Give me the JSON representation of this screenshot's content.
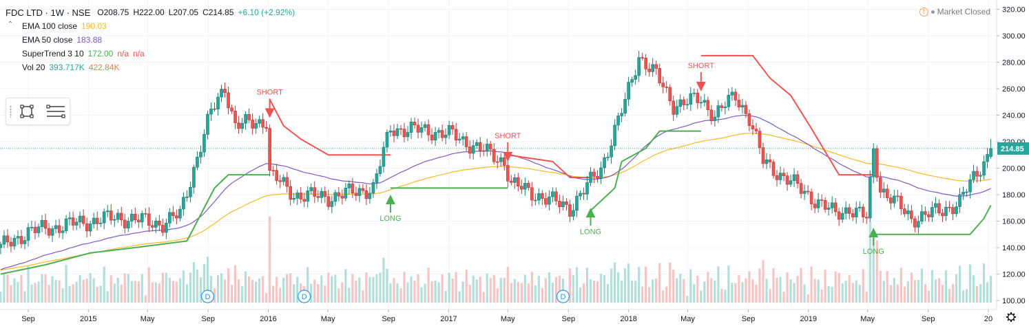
{
  "header": {
    "title": "FDC LTD · 1W · NSE",
    "open": "O208.75",
    "high": "H222.00",
    "low": "L207.05",
    "close": "C214.85",
    "change": "+6.10 (+2.92%)"
  },
  "studies": [
    {
      "name": "EMA 100 close",
      "values": [
        "190.03"
      ],
      "colors": [
        "#f7b924"
      ]
    },
    {
      "name": "EMA 50 close",
      "values": [
        "183.88"
      ],
      "colors": [
        "#7e57c2"
      ]
    },
    {
      "name": "SuperTrend 3 10",
      "values": [
        "172.00",
        "n/a",
        "n/a"
      ],
      "colors": [
        "#4caf50",
        "#ef5350",
        "#ef5350"
      ]
    },
    {
      "name": "Vol 20",
      "values": [
        "393.717K",
        "422.84K"
      ],
      "colors": [
        "#26a69a",
        "#f57c45"
      ]
    }
  ],
  "market_status": "Market Closed",
  "colors": {
    "up": "#26a69a",
    "down": "#ef5350",
    "ema100": "#f7b924",
    "ema50": "#7e57c2",
    "st_up": "#4caf50",
    "st_down": "#ef5350"
  },
  "icons": {
    "toolbox": [
      "drag-grip-icon",
      "rectangle-tool-icon",
      "lines-tool-icon"
    ],
    "settings": "gear-icon",
    "warning": "warning-icon"
  },
  "chart_data": {
    "type": "candlestick",
    "last_price_label": "214.85",
    "y_ticks": [
      100,
      120,
      140,
      160,
      180,
      200,
      220,
      240,
      260,
      280,
      300,
      320
    ],
    "y_tick_labels": [
      "100.00",
      "120.00",
      "140.00",
      "160.00",
      "180.00",
      "200.00",
      "220.00",
      "240.00",
      "260.00",
      "280.00",
      "300.00",
      "320.00"
    ],
    "x_tick_labels": [
      "Sep",
      "2015",
      "May",
      "Sep",
      "2016",
      "May",
      "Sep",
      "2017",
      "May",
      "Sep",
      "2018",
      "May",
      "Sep",
      "2019",
      "May",
      "Sep",
      "20"
    ],
    "x_tick_dates": [
      "2014-09-01",
      "2015-01-01",
      "2015-05-01",
      "2015-09-01",
      "2016-01-01",
      "2016-05-01",
      "2016-09-01",
      "2017-01-01",
      "2017-05-01",
      "2017-09-01",
      "2018-01-01",
      "2018-05-01",
      "2018-09-01",
      "2019-01-01",
      "2019-05-01",
      "2019-09-01",
      "2020-01-01"
    ],
    "price_anchors": [
      [
        "2014-07-07",
        140
      ],
      [
        "2014-09-01",
        152
      ],
      [
        "2014-12-01",
        158
      ],
      [
        "2015-03-02",
        163
      ],
      [
        "2015-06-01",
        158
      ],
      [
        "2015-07-06",
        165
      ],
      [
        "2015-08-03",
        200
      ],
      [
        "2015-09-07",
        242
      ],
      [
        "2015-10-05",
        262
      ],
      [
        "2015-10-26",
        232
      ],
      [
        "2015-12-28",
        236
      ],
      [
        "2016-01-04",
        196
      ],
      [
        "2016-02-22",
        180
      ],
      [
        "2016-05-02",
        178
      ],
      [
        "2016-08-01",
        185
      ],
      [
        "2016-09-05",
        230
      ],
      [
        "2016-11-28",
        228
      ],
      [
        "2017-01-09",
        225
      ],
      [
        "2017-04-24",
        205
      ],
      [
        "2017-05-08",
        188
      ],
      [
        "2017-07-31",
        175
      ],
      [
        "2017-09-04",
        170
      ],
      [
        "2017-10-02",
        183
      ],
      [
        "2017-11-06",
        200
      ],
      [
        "2017-12-25",
        250
      ],
      [
        "2018-01-22",
        285
      ],
      [
        "2018-02-26",
        270
      ],
      [
        "2018-04-02",
        248
      ],
      [
        "2018-05-28",
        252
      ],
      [
        "2018-06-25",
        240
      ],
      [
        "2018-08-06",
        255
      ],
      [
        "2018-09-03",
        238
      ],
      [
        "2018-10-01",
        205
      ],
      [
        "2018-12-31",
        180
      ],
      [
        "2019-02-25",
        165
      ],
      [
        "2019-03-25",
        170
      ],
      [
        "2019-04-29",
        162
      ],
      [
        "2019-05-13",
        214
      ],
      [
        "2019-05-27",
        185
      ],
      [
        "2019-07-29",
        162
      ],
      [
        "2019-09-30",
        168
      ],
      [
        "2019-11-04",
        175
      ],
      [
        "2019-12-23",
        205
      ],
      [
        "2020-01-06",
        214.85
      ]
    ],
    "last_candle": {
      "open": 208.75,
      "high": 222.0,
      "low": 207.05,
      "close": 214.85
    },
    "supertrend": [
      {
        "trend": "up",
        "points": [
          [
            "2014-07-07",
            120
          ],
          [
            "2014-10-06",
            127
          ],
          [
            "2015-01-05",
            136
          ],
          [
            "2015-04-06",
            140
          ],
          [
            "2015-07-20",
            145
          ],
          [
            "2015-08-17",
            165
          ],
          [
            "2015-09-14",
            185
          ],
          [
            "2015-10-12",
            195
          ],
          [
            "2016-01-04",
            195
          ]
        ]
      },
      {
        "trend": "down",
        "points": [
          [
            "2016-01-04",
            252
          ],
          [
            "2016-02-01",
            232
          ],
          [
            "2016-03-07",
            222
          ],
          [
            "2016-05-02",
            210
          ],
          [
            "2016-09-05",
            210
          ]
        ]
      },
      {
        "trend": "up",
        "points": [
          [
            "2016-09-05",
            185
          ],
          [
            "2017-05-01",
            185
          ]
        ]
      },
      {
        "trend": "down",
        "points": [
          [
            "2017-05-01",
            210
          ],
          [
            "2017-07-31",
            205
          ],
          [
            "2017-09-04",
            193
          ],
          [
            "2017-10-16",
            193
          ]
        ]
      },
      {
        "trend": "up",
        "points": [
          [
            "2017-10-16",
            168
          ],
          [
            "2017-12-04",
            185
          ],
          [
            "2017-12-18",
            205
          ],
          [
            "2018-02-05",
            215
          ],
          [
            "2018-03-05",
            228
          ],
          [
            "2018-05-28",
            228
          ]
        ]
      },
      {
        "trend": "down",
        "points": [
          [
            "2018-05-28",
            285
          ],
          [
            "2018-09-10",
            285
          ],
          [
            "2018-10-15",
            268
          ],
          [
            "2018-11-26",
            255
          ],
          [
            "2019-01-07",
            230
          ],
          [
            "2019-03-04",
            195
          ],
          [
            "2019-05-13",
            195
          ]
        ]
      },
      {
        "trend": "up",
        "points": [
          [
            "2019-05-13",
            150
          ],
          [
            "2019-11-25",
            150
          ],
          [
            "2019-12-23",
            162
          ],
          [
            "2020-01-06",
            172
          ]
        ]
      }
    ],
    "signals": [
      {
        "type": "SHORT",
        "date": "2016-01-04",
        "price": 238
      },
      {
        "type": "LONG",
        "date": "2016-09-05",
        "price": 180
      },
      {
        "type": "SHORT",
        "date": "2017-05-01",
        "price": 205
      },
      {
        "type": "LONG",
        "date": "2017-10-16",
        "price": 170
      },
      {
        "type": "SHORT",
        "date": "2018-05-28",
        "price": 258
      },
      {
        "type": "LONG",
        "date": "2019-05-13",
        "price": 155
      }
    ],
    "dividend_markers": [
      {
        "label": "D",
        "date": "2015-08-31"
      },
      {
        "label": "D",
        "date": "2016-03-14"
      },
      {
        "label": "D",
        "date": "2017-08-21"
      }
    ]
  }
}
